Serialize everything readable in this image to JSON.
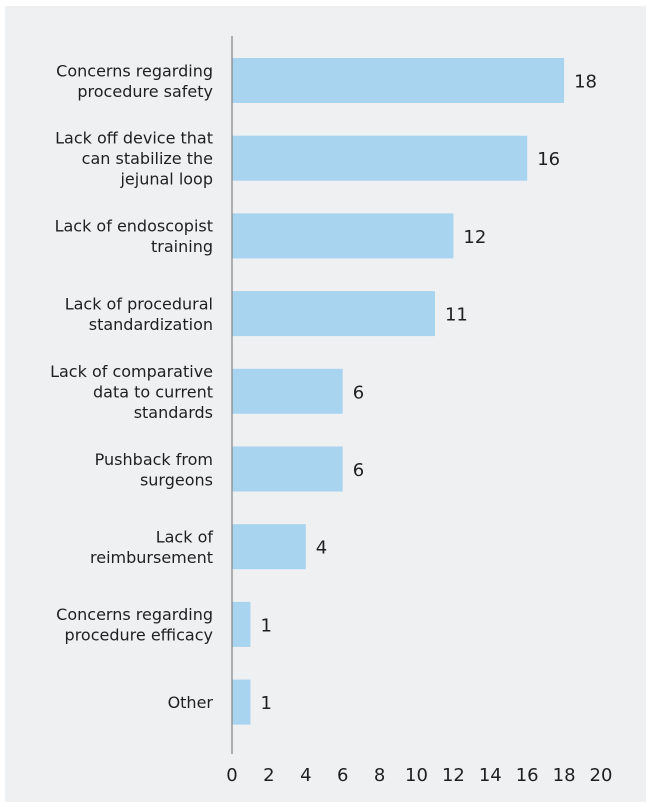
{
  "chart_data": {
    "type": "bar",
    "orientation": "horizontal",
    "categories": [
      [
        "Concerns regarding",
        "procedure safety"
      ],
      [
        "Lack off device that",
        "can stabilize the",
        "jejunal loop"
      ],
      [
        "Lack of endoscopist",
        "training"
      ],
      [
        "Lack of procedural",
        "standardization"
      ],
      [
        "Lack of comparative",
        "data to current",
        "standards"
      ],
      [
        "Pushback from",
        "surgeons"
      ],
      [
        "Lack of",
        "reimbursement"
      ],
      [
        "Concerns regarding",
        "procedure efficacy"
      ],
      [
        "Other"
      ]
    ],
    "values": [
      18,
      16,
      12,
      11,
      6,
      6,
      4,
      1,
      1
    ],
    "x_ticks": [
      "0",
      "2",
      "4",
      "6",
      "8",
      "10",
      "12",
      "14",
      "16",
      "18",
      "20"
    ],
    "xlim": [
      0,
      20
    ],
    "grid": false,
    "bar_color": "#a9d4ef",
    "background_color": "#eef0f2"
  }
}
